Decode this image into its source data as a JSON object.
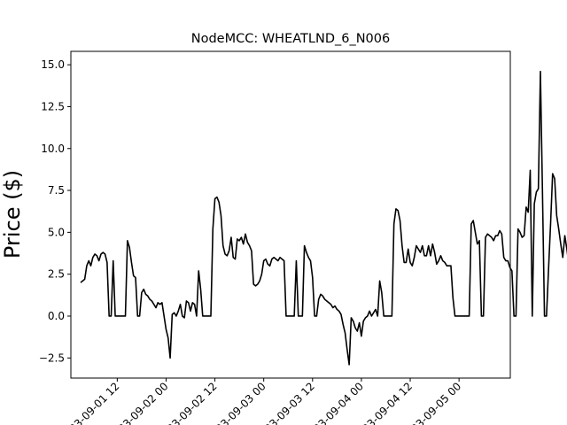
{
  "chart_data": {
    "type": "line",
    "title": "NodeMCC: WHEATLND_6_N006",
    "xlabel": "",
    "ylabel": "Price ($)",
    "ylim": [
      -3.7,
      15.8
    ],
    "xlim": [
      "2023-09-01 00:36",
      "2023-09-05 12:36"
    ],
    "grid": false,
    "color": "#000000",
    "x_tick_labels": [
      "2023-09-01 12",
      "2023-09-02 00",
      "2023-09-02 12",
      "2023-09-03 00",
      "2023-09-03 12",
      "2023-09-04 00",
      "2023-09-04 12",
      "2023-09-05 00"
    ],
    "y_ticks": [
      -2.5,
      0.0,
      2.5,
      5.0,
      7.5,
      10.0,
      12.5,
      15.0
    ],
    "y_tick_labels": [
      "−2.5",
      "0.0",
      "2.5",
      "5.0",
      "7.5",
      "10.0",
      "12.5",
      "15.0"
    ],
    "x_start": "2023-09-01 03:00",
    "x_step_hours": 0.5,
    "series": [
      {
        "name": "",
        "values": [
          2.0,
          2.1,
          2.2,
          3.0,
          3.3,
          3.0,
          3.5,
          3.7,
          3.6,
          3.3,
          3.7,
          3.8,
          3.7,
          3.2,
          0.0,
          0.0,
          3.3,
          0.0,
          0.0,
          0.0,
          0.0,
          0.0,
          0.0,
          4.5,
          4.1,
          3.2,
          2.4,
          2.3,
          0.0,
          0.0,
          1.4,
          1.6,
          1.3,
          1.2,
          1.0,
          0.9,
          0.7,
          0.5,
          0.8,
          0.7,
          0.8,
          0.0,
          -0.8,
          -1.3,
          -2.5,
          0.1,
          0.2,
          0.0,
          0.3,
          0.7,
          0.0,
          -0.1,
          0.9,
          0.8,
          0.3,
          0.8,
          0.7,
          0.0,
          2.7,
          1.6,
          0.0,
          0.0,
          0.0,
          0.0,
          0.0,
          5.2,
          7.0,
          7.1,
          6.8,
          6.0,
          4.2,
          3.7,
          3.6,
          3.9,
          4.7,
          3.5,
          3.4,
          4.6,
          4.5,
          4.7,
          4.3,
          4.9,
          4.4,
          4.2,
          3.9,
          1.9,
          1.8,
          1.9,
          2.1,
          2.5,
          3.3,
          3.4,
          3.1,
          3.0,
          3.4,
          3.5,
          3.4,
          3.3,
          3.5,
          3.4,
          3.3,
          0.0,
          0.0,
          0.0,
          0.0,
          0.0,
          3.3,
          0.0,
          0.0,
          0.0,
          4.2,
          3.8,
          3.5,
          3.3,
          2.3,
          0.0,
          0.0,
          1.0,
          1.3,
          1.2,
          1.0,
          0.9,
          0.8,
          0.7,
          0.5,
          0.6,
          0.4,
          0.3,
          0.1,
          -0.5,
          -1.0,
          -2.0,
          -2.9,
          -0.1,
          -0.3,
          -0.7,
          -0.9,
          -0.4,
          -1.2,
          -0.3,
          -0.1,
          0.0,
          0.3,
          0.0,
          0.2,
          0.4,
          0.0,
          2.1,
          1.4,
          0.0,
          0.0,
          0.0,
          0.0,
          0.0,
          5.5,
          6.4,
          6.3,
          5.7,
          4.2,
          3.2,
          3.2,
          4.0,
          3.2,
          3.0,
          3.5,
          4.2,
          4.0,
          3.8,
          4.2,
          3.6,
          3.6,
          4.2,
          3.6,
          4.3,
          3.8,
          3.1,
          3.3,
          3.6,
          3.3,
          3.2,
          3.0,
          3.0,
          3.0,
          1.1,
          0.0,
          0.0,
          0.0,
          0.0,
          0.0,
          0.0,
          0.0,
          0.0,
          5.5,
          5.7,
          5.0,
          4.3,
          4.5,
          0.0,
          0.0,
          4.7,
          4.9,
          4.8,
          4.7,
          4.5,
          4.8,
          4.8,
          5.1,
          4.9,
          3.5,
          3.3,
          3.3,
          2.9,
          2.7,
          0.0,
          0.0,
          5.2,
          5.0,
          4.7,
          4.8,
          6.5,
          6.2,
          8.7,
          0.0,
          6.7,
          7.4,
          7.6,
          14.6,
          7.5,
          0.0,
          0.0,
          2.8,
          5.5,
          8.5,
          8.2,
          6.0,
          5.2,
          4.3,
          3.5,
          4.8,
          4.0,
          3.1,
          3.2,
          3.8,
          3.4,
          4.3,
          3.1,
          3.9,
          3.0,
          2.9,
          3.2,
          3.8,
          3.6,
          4.0,
          3.5,
          3.3,
          3.1,
          2.7,
          3.8,
          3.1,
          3.3,
          3.6,
          3.2,
          2.9,
          2.8,
          0.0,
          0.0,
          0.0,
          0.0,
          0.0,
          0.0,
          0.0,
          0.0,
          0.0,
          5.5,
          5.7,
          5.0,
          4.3,
          4.5,
          0.0,
          0.0,
          4.7,
          4.9,
          4.8,
          4.7,
          4.5,
          4.8,
          4.8,
          5.1,
          4.9,
          3.5,
          3.3,
          3.3,
          2.9,
          2.7,
          0.0,
          0.0,
          5.2,
          5.0,
          4.7,
          4.8,
          6.5,
          6.2,
          8.7,
          0.0,
          6.7,
          7.4,
          7.6,
          14.6,
          7.5,
          0.0,
          0.0,
          2.8,
          5.5,
          8.5,
          8.2,
          6.0,
          5.2,
          4.3,
          3.5,
          4.8,
          4.0,
          3.1,
          3.2,
          3.8,
          3.4,
          4.3,
          3.0,
          2.9,
          4.0,
          3.6,
          3.9,
          3.3
        ]
      }
    ]
  }
}
